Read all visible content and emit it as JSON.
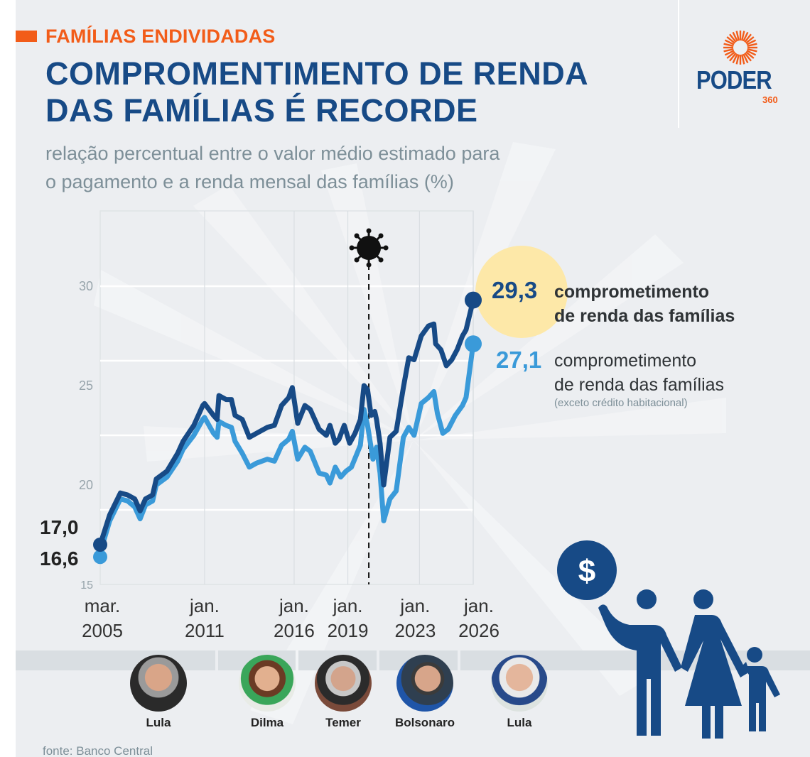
{
  "header": {
    "kicker": "FAMÍLIAS ENDIVIDADAS",
    "title_line1": "COMPROMENTIMENTO DE RENDA",
    "title_line2": "DAS FAMÍLIAS É RECORDE",
    "subtitle_line1": "relação percentual entre o valor médio estimado para",
    "subtitle_line2": "o pagamento e a renda mensal das famílias (%)"
  },
  "logo": {
    "word": "PODER",
    "number": "360"
  },
  "colors": {
    "accent": "#f25c19",
    "title": "#174a86",
    "dark_series": "#174a86",
    "light_series": "#3a9ad9",
    "highlight": "#fde8a8",
    "background": "#eceef1"
  },
  "chart_data": {
    "type": "line",
    "title": "COMPROMENTIMENTO DE RENDA DAS FAMÍLIAS É RECORDE",
    "ylabel": "%",
    "ylim": [
      15,
      33.5
    ],
    "xlim": [
      2005.17,
      2026.0
    ],
    "yticks": [
      {
        "value": 30,
        "label": "30"
      },
      {
        "value": 25,
        "label": "25"
      },
      {
        "value": 20,
        "label": "20"
      },
      {
        "value": 15,
        "label": "15"
      }
    ],
    "ygrid": [
      30,
      26.25,
      22.5,
      18.75
    ],
    "xticks": [
      {
        "value": 2005.17,
        "label1": "mar.",
        "label2": "2005"
      },
      {
        "value": 2011.0,
        "label1": "jan.",
        "label2": "2011"
      },
      {
        "value": 2016.0,
        "label1": "jan.",
        "label2": "2016"
      },
      {
        "value": 2019.0,
        "label1": "jan.",
        "label2": "2019"
      },
      {
        "value": 2023.0,
        "label1": "jan.",
        "label2": "2023"
      },
      {
        "value": 2026.0,
        "label1": "jan.",
        "label2": "2026"
      }
    ],
    "covid_marker": {
      "x": 2020.17,
      "icon": "virus-icon"
    },
    "series": [
      {
        "name": "comprometimento de renda das famílias",
        "color": "#174a86",
        "start_label": "17,0",
        "end_label": "29,3",
        "points": [
          [
            2005.17,
            17.0
          ],
          [
            2005.7,
            18.5
          ],
          [
            2006.3,
            19.6
          ],
          [
            2006.7,
            19.5
          ],
          [
            2007.1,
            19.3
          ],
          [
            2007.4,
            18.7
          ],
          [
            2007.7,
            19.3
          ],
          [
            2008.1,
            19.5
          ],
          [
            2008.3,
            20.3
          ],
          [
            2008.9,
            20.7
          ],
          [
            2009.5,
            21.6
          ],
          [
            2009.8,
            22.2
          ],
          [
            2010.4,
            23.0
          ],
          [
            2010.9,
            24.0
          ],
          [
            2011.0,
            24.1
          ],
          [
            2011.5,
            23.5
          ],
          [
            2011.7,
            23.3
          ],
          [
            2011.8,
            24.5
          ],
          [
            2012.2,
            24.3
          ],
          [
            2012.5,
            24.3
          ],
          [
            2012.7,
            23.5
          ],
          [
            2013.1,
            23.3
          ],
          [
            2013.5,
            22.4
          ],
          [
            2013.9,
            22.6
          ],
          [
            2014.5,
            22.9
          ],
          [
            2014.9,
            23.0
          ],
          [
            2015.3,
            24.0
          ],
          [
            2015.7,
            24.4
          ],
          [
            2015.9,
            24.9
          ],
          [
            2016.2,
            23.1
          ],
          [
            2016.6,
            24.0
          ],
          [
            2016.9,
            23.8
          ],
          [
            2017.4,
            22.8
          ],
          [
            2017.8,
            22.5
          ],
          [
            2018.0,
            23.0
          ],
          [
            2018.3,
            22.1
          ],
          [
            2018.5,
            22.3
          ],
          [
            2018.8,
            23.0
          ],
          [
            2019.1,
            22.1
          ],
          [
            2019.4,
            22.6
          ],
          [
            2019.7,
            23.3
          ],
          [
            2019.9,
            25.0
          ],
          [
            2020.1,
            24.8
          ],
          [
            2020.3,
            23.5
          ],
          [
            2020.5,
            23.7
          ],
          [
            2020.6,
            23.3
          ],
          [
            2020.8,
            22.1
          ],
          [
            2021.0,
            20.0
          ],
          [
            2021.35,
            22.4
          ],
          [
            2021.7,
            22.7
          ],
          [
            2022.1,
            24.9
          ],
          [
            2022.4,
            26.4
          ],
          [
            2022.7,
            26.3
          ],
          [
            2023.1,
            27.5
          ],
          [
            2023.5,
            28.0
          ],
          [
            2023.8,
            28.1
          ],
          [
            2023.9,
            27.1
          ],
          [
            2024.2,
            26.8
          ],
          [
            2024.5,
            26.0
          ],
          [
            2024.8,
            26.3
          ],
          [
            2025.1,
            26.8
          ],
          [
            2025.4,
            27.5
          ],
          [
            2025.6,
            27.8
          ],
          [
            2026.0,
            29.3
          ]
        ]
      },
      {
        "name": "comprometimento de renda das famílias (exceto crédito habitacional)",
        "color": "#3a9ad9",
        "start_label": "16,6",
        "end_label": "27,1",
        "points": [
          [
            2005.17,
            16.6
          ],
          [
            2005.7,
            18.2
          ],
          [
            2006.3,
            19.3
          ],
          [
            2006.7,
            19.2
          ],
          [
            2007.1,
            18.9
          ],
          [
            2007.4,
            18.3
          ],
          [
            2007.7,
            19.0
          ],
          [
            2008.1,
            19.2
          ],
          [
            2008.3,
            20.0
          ],
          [
            2008.9,
            20.4
          ],
          [
            2009.5,
            21.2
          ],
          [
            2009.8,
            21.8
          ],
          [
            2010.4,
            22.5
          ],
          [
            2010.9,
            23.3
          ],
          [
            2011.0,
            23.4
          ],
          [
            2011.5,
            22.6
          ],
          [
            2011.7,
            22.4
          ],
          [
            2011.8,
            23.2
          ],
          [
            2012.2,
            23.0
          ],
          [
            2012.5,
            22.9
          ],
          [
            2012.7,
            22.2
          ],
          [
            2013.1,
            21.6
          ],
          [
            2013.5,
            20.9
          ],
          [
            2013.9,
            21.1
          ],
          [
            2014.5,
            21.3
          ],
          [
            2014.9,
            21.2
          ],
          [
            2015.3,
            22.0
          ],
          [
            2015.7,
            22.3
          ],
          [
            2015.9,
            22.7
          ],
          [
            2016.2,
            21.3
          ],
          [
            2016.6,
            21.9
          ],
          [
            2016.9,
            21.7
          ],
          [
            2017.4,
            20.6
          ],
          [
            2017.8,
            20.5
          ],
          [
            2018.0,
            20.1
          ],
          [
            2018.3,
            20.9
          ],
          [
            2018.6,
            20.4
          ],
          [
            2018.9,
            20.7
          ],
          [
            2019.2,
            20.9
          ],
          [
            2019.7,
            22.0
          ],
          [
            2019.9,
            23.8
          ],
          [
            2020.1,
            23.0
          ],
          [
            2020.4,
            21.3
          ],
          [
            2020.6,
            21.9
          ],
          [
            2020.8,
            20.6
          ],
          [
            2021.0,
            18.2
          ],
          [
            2021.35,
            19.3
          ],
          [
            2021.7,
            19.7
          ],
          [
            2022.1,
            22.4
          ],
          [
            2022.4,
            22.9
          ],
          [
            2022.7,
            22.5
          ],
          [
            2023.1,
            24.1
          ],
          [
            2023.5,
            24.4
          ],
          [
            2023.8,
            24.7
          ],
          [
            2024.0,
            23.6
          ],
          [
            2024.3,
            22.6
          ],
          [
            2024.6,
            22.8
          ],
          [
            2025.0,
            23.5
          ],
          [
            2025.4,
            24.0
          ],
          [
            2025.6,
            24.4
          ],
          [
            2026.0,
            27.1
          ]
        ]
      }
    ],
    "annotations": [
      {
        "value": "29,3",
        "line1": "comprometimento",
        "line2": "de renda das famílias",
        "note": ""
      },
      {
        "value": "27,1",
        "line1": "comprometimento",
        "line2": "de renda das famílias",
        "note": "(exceto crédito habitacional)"
      }
    ]
  },
  "presidents": [
    {
      "name": "Lula",
      "icon": "lula-portrait"
    },
    {
      "name": "Dilma",
      "icon": "dilma-portrait"
    },
    {
      "name": "Temer",
      "icon": "temer-portrait"
    },
    {
      "name": "Bolsonaro",
      "icon": "bolsonaro-portrait"
    },
    {
      "name": "Lula",
      "icon": "lula-portrait"
    }
  ],
  "illustration": {
    "coin_symbol": "$",
    "icon": "family-icon"
  },
  "source": "fonte: Banco Central"
}
